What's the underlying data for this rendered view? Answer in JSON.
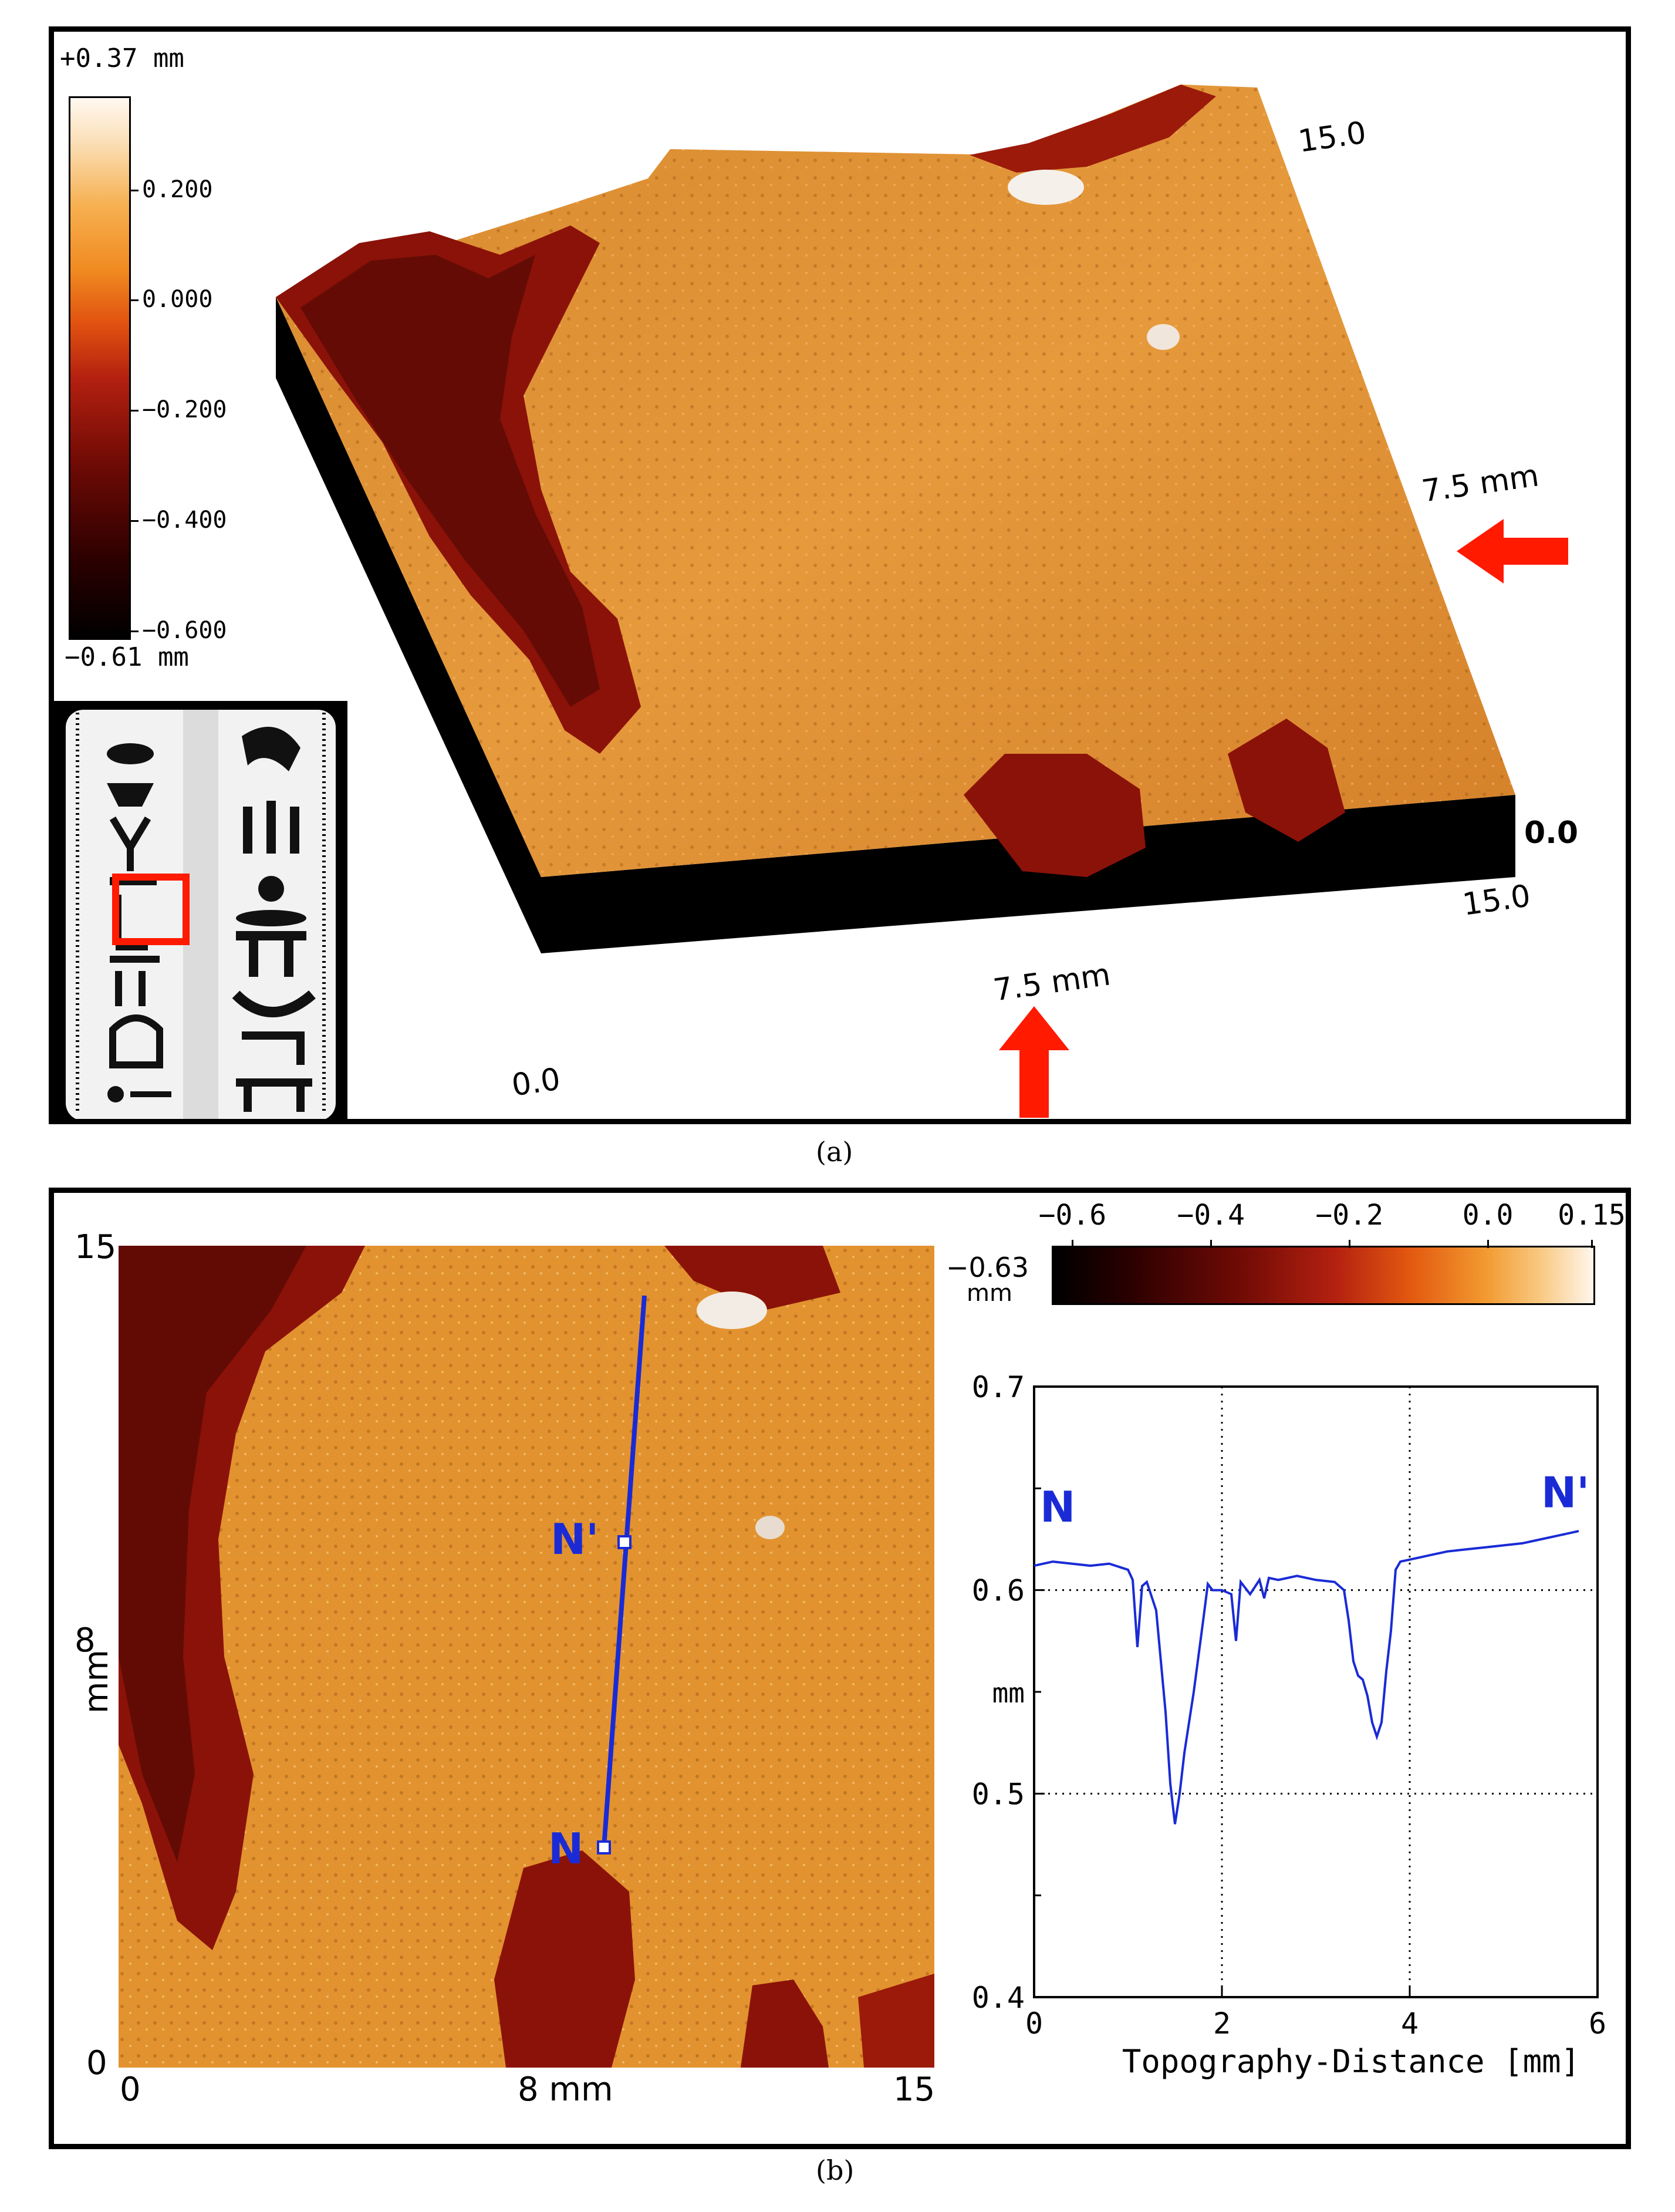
{
  "panel_a": {
    "colorbar_max_label": "+0.37 mm",
    "colorbar_min_label": "−0.61 mm",
    "colorbar_ticks": [
      {
        "label": "0.200",
        "value": 0.2
      },
      {
        "label": "0.000",
        "value": 0.0
      },
      {
        "label": "−0.200",
        "value": -0.2
      },
      {
        "label": "−0.400",
        "value": -0.4
      },
      {
        "label": "−0.600",
        "value": -0.6
      }
    ],
    "axis_labels": {
      "origin": "0.0",
      "x_end": "15.0",
      "y_end": "15.0",
      "z_zero": "0.0",
      "x_mid": "7.5 mm",
      "y_mid": "7.5 mm"
    },
    "caption": "(a)"
  },
  "panel_b": {
    "colorbar_ticks": [
      {
        "label": "−0.6",
        "value": -0.6
      },
      {
        "label": "−0.4",
        "value": -0.4
      },
      {
        "label": "−0.2",
        "value": -0.2
      },
      {
        "label": "0.0",
        "value": 0.0
      },
      {
        "label": "0.15",
        "value": 0.15
      }
    ],
    "colorbar_min_label": "−0.63",
    "colorbar_unit": "mm",
    "map": {
      "y_top": "15",
      "y_bottom": "0",
      "y_mid": "8",
      "y_unit": "mm",
      "x_left": "0",
      "x_mid": "8 mm",
      "x_right": "15"
    },
    "profile_start_label": "N",
    "profile_end_label": "N'",
    "caption": "(b)"
  },
  "colors": {
    "profile_line": "#1a2bd6",
    "label_blue": "#1a2bd6",
    "arrow_red": "#ff1a00",
    "surface_orange": "#e0902e",
    "surface_red": "#8b1208"
  },
  "chart_data": {
    "type": "line",
    "title": "",
    "xlabel": "Topography-Distance [mm]",
    "ylabel": "mm",
    "xlim": [
      0,
      6
    ],
    "ylim": [
      0.4,
      0.7
    ],
    "xticks": [
      0,
      2,
      4,
      6
    ],
    "yticks": [
      0.4,
      0.5,
      0.6,
      0.7
    ],
    "grid": true,
    "annotations": [
      "N",
      "N'"
    ],
    "series": [
      {
        "x": [
          0,
          0.2,
          0.4,
          0.6,
          0.8,
          1.0,
          1.05,
          1.1,
          1.15,
          1.2,
          1.3,
          1.4,
          1.45,
          1.5,
          1.55,
          1.6,
          1.7,
          1.8,
          1.85,
          1.9,
          2.0,
          2.1,
          2.15,
          2.2,
          2.3,
          2.4,
          2.45,
          2.5,
          2.6,
          2.8,
          3.0,
          3.2,
          3.3,
          3.35,
          3.4,
          3.45,
          3.5,
          3.55,
          3.6,
          3.65,
          3.7,
          3.75,
          3.8,
          3.85,
          3.9,
          4.0,
          4.2,
          4.4,
          4.6,
          4.8,
          5.0,
          5.2,
          5.4,
          5.6,
          5.8
        ],
        "y": [
          0.612,
          0.614,
          0.613,
          0.612,
          0.613,
          0.61,
          0.605,
          0.572,
          0.602,
          0.604,
          0.59,
          0.54,
          0.505,
          0.485,
          0.5,
          0.52,
          0.55,
          0.585,
          0.603,
          0.6,
          0.6,
          0.598,
          0.575,
          0.604,
          0.598,
          0.605,
          0.596,
          0.606,
          0.605,
          0.607,
          0.605,
          0.604,
          0.6,
          0.585,
          0.565,
          0.558,
          0.556,
          0.548,
          0.535,
          0.528,
          0.535,
          0.56,
          0.58,
          0.61,
          0.614,
          0.615,
          0.617,
          0.619,
          0.62,
          0.621,
          0.622,
          0.623,
          0.625,
          0.627,
          0.629
        ]
      }
    ]
  }
}
